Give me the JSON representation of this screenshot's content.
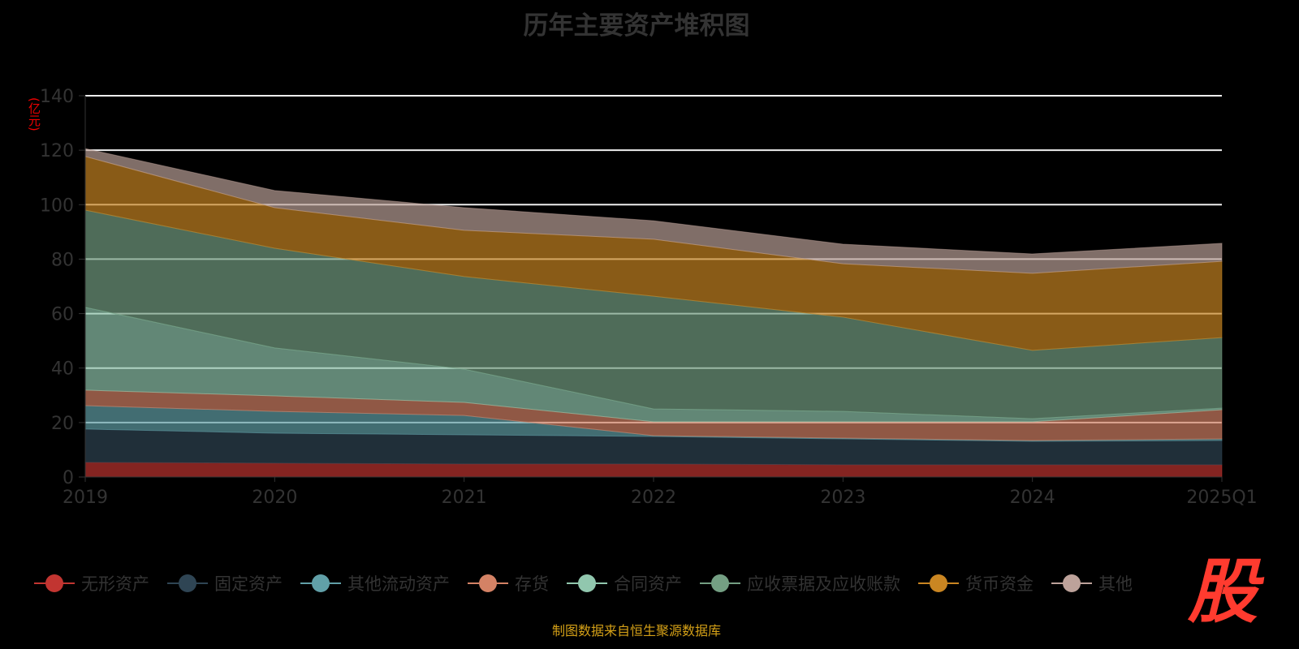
{
  "chart_data": {
    "type": "area",
    "stacked": true,
    "title": "历年主要资产堆积图",
    "ylabel": "(亿元)",
    "xlabel": "",
    "ylim": [
      0,
      140
    ],
    "yticks": [
      0,
      20,
      40,
      60,
      80,
      100,
      120,
      140
    ],
    "grid": true,
    "legend_position": "bottom",
    "categories": [
      "2019",
      "2020",
      "2021",
      "2022",
      "2023",
      "2024",
      "2025Q1"
    ],
    "series": [
      {
        "name": "无形资产",
        "color": "#c23531",
        "values": [
          5.4,
          5.1,
          4.8,
          4.8,
          4.5,
          4.5,
          4.5
        ]
      },
      {
        "name": "固定资产",
        "color": "#2f4554",
        "values": [
          12.2,
          11.0,
          10.7,
          10.1,
          9.5,
          8.6,
          8.9
        ]
      },
      {
        "name": "其他流动资产",
        "color": "#61a0a8",
        "values": [
          8.6,
          8.0,
          7.1,
          0.3,
          0.3,
          0.3,
          0.6
        ]
      },
      {
        "name": "存货",
        "color": "#d48265",
        "values": [
          5.7,
          5.7,
          4.8,
          5.1,
          6.0,
          6.9,
          10.7
        ]
      },
      {
        "name": "合同资产",
        "color": "#91c7ae",
        "values": [
          30.4,
          17.6,
          12.2,
          4.7,
          3.8,
          1.1,
          0.6
        ]
      },
      {
        "name": "应收票据及应收账款",
        "color": "#749f83",
        "values": [
          35.7,
          36.6,
          34.0,
          41.4,
          34.6,
          25.1,
          25.9
        ]
      },
      {
        "name": "货币资金",
        "color": "#ca8622",
        "values": [
          19.7,
          14.9,
          17.0,
          20.9,
          19.6,
          28.3,
          28.0
        ]
      },
      {
        "name": "其他",
        "color": "#bda29a",
        "values": [
          2.9,
          6.3,
          8.3,
          6.8,
          7.2,
          7.1,
          6.6
        ]
      }
    ]
  },
  "footer": "制图数据来自恒生聚源数据库",
  "logo_text": "股"
}
